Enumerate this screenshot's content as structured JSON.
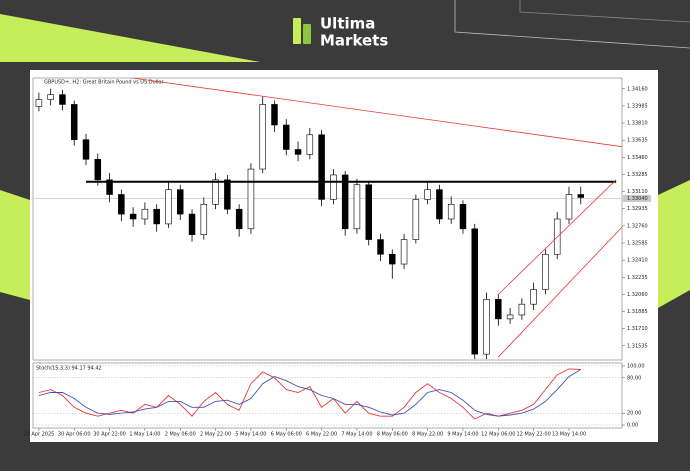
{
  "header": {
    "brand_line1": "Ultima",
    "brand_line2": "Markets"
  },
  "chart_data": {
    "type": "candlestick",
    "title": "GBPUSD+, H2: Great Britain Pound vs US Dollar",
    "categories": [
      "29 Apr 2025",
      null,
      null,
      "30 Apr 06:00",
      null,
      null,
      "30 Apr 22:00",
      null,
      null,
      "1 May 14:00",
      null,
      null,
      "2 May 06:00",
      null,
      null,
      "2 May 22:00",
      null,
      null,
      "5 May 14:00",
      null,
      null,
      "6 May 06:00",
      null,
      null,
      "6 May 22:00",
      null,
      null,
      "7 May 14:00",
      null,
      null,
      "8 May 06:00",
      null,
      null,
      "8 May 22:00",
      null,
      null,
      "9 May 14:00",
      null,
      null,
      "12 May 06:00",
      null,
      null,
      "12 May 22:00",
      null,
      null,
      "13 May 14:00",
      null
    ],
    "open": [
      1.3398,
      1.3405,
      1.341,
      1.34,
      1.3364,
      1.3344,
      1.3323,
      1.3308,
      1.3288,
      1.3283,
      1.3293,
      1.3278,
      1.3313,
      1.3288,
      1.3267,
      1.3298,
      1.3323,
      1.3293,
      1.3273,
      1.3334,
      1.34,
      1.3379,
      1.3354,
      1.3349,
      1.3369,
      1.3303,
      1.3328,
      1.3273,
      1.3318,
      1.3262,
      1.3247,
      1.3237,
      1.3262,
      1.3303,
      1.3313,
      1.3283,
      1.3298,
      1.3273,
      1.3145,
      1.3201,
      1.3181,
      1.3185,
      1.3196,
      1.3211,
      1.3247,
      1.3283,
      1.3308
    ],
    "high": [
      1.3412,
      1.3416,
      1.3415,
      1.3404,
      1.337,
      1.335,
      1.333,
      1.3313,
      1.3295,
      1.33,
      1.3298,
      1.332,
      1.3318,
      1.3293,
      1.3305,
      1.333,
      1.3328,
      1.3298,
      1.334,
      1.3408,
      1.3404,
      1.3385,
      1.3362,
      1.3376,
      1.3374,
      1.3334,
      1.3332,
      1.3324,
      1.3322,
      1.3268,
      1.3252,
      1.3268,
      1.3308,
      1.3322,
      1.3318,
      1.3306,
      1.3302,
      1.3278,
      1.3208,
      1.3206,
      1.3192,
      1.3202,
      1.3218,
      1.3252,
      1.329,
      1.3316,
      1.3316
    ],
    "low": [
      1.3393,
      1.3399,
      1.3394,
      1.3358,
      1.3338,
      1.3317,
      1.33,
      1.3281,
      1.3275,
      1.3277,
      1.327,
      1.3274,
      1.3282,
      1.326,
      1.3262,
      1.3293,
      1.3288,
      1.3265,
      1.3268,
      1.333,
      1.3372,
      1.3348,
      1.3342,
      1.3344,
      1.3296,
      1.3298,
      1.3266,
      1.3268,
      1.3256,
      1.324,
      1.3222,
      1.3232,
      1.3258,
      1.3298,
      1.3278,
      1.3278,
      1.3268,
      1.314,
      1.314,
      1.3174,
      1.3176,
      1.318,
      1.319,
      1.3206,
      1.3242,
      1.3278,
      1.3298
    ],
    "close": [
      1.3405,
      1.341,
      1.34,
      1.3364,
      1.3344,
      1.3323,
      1.3308,
      1.3288,
      1.3283,
      1.3293,
      1.3278,
      1.3313,
      1.3288,
      1.3267,
      1.3298,
      1.3323,
      1.3293,
      1.3273,
      1.3334,
      1.34,
      1.3379,
      1.3354,
      1.3349,
      1.3369,
      1.3303,
      1.3328,
      1.3273,
      1.3318,
      1.3262,
      1.3247,
      1.3237,
      1.3262,
      1.3303,
      1.3313,
      1.3283,
      1.3298,
      1.3273,
      1.3145,
      1.3201,
      1.3181,
      1.3185,
      1.3196,
      1.3211,
      1.3247,
      1.3283,
      1.3308,
      1.3305
    ],
    "up_color": "#ffffff",
    "down_color": "#000000",
    "ylim": [
      1.3139,
      1.3427
    ],
    "yticks": [
      {
        "value": 1.3416,
        "label": "1.34160"
      },
      {
        "value": 1.33985,
        "label": "1.33985"
      },
      {
        "value": 1.3381,
        "label": "1.33810"
      },
      {
        "value": 1.33635,
        "label": "1.33635"
      },
      {
        "value": 1.3346,
        "label": "1.33460"
      },
      {
        "value": 1.33285,
        "label": "1.33285"
      },
      {
        "value": 1.3311,
        "label": "1.33110"
      },
      {
        "value": 1.32935,
        "label": "1.32935"
      },
      {
        "value": 1.3276,
        "label": "1.32760"
      },
      {
        "value": 1.32585,
        "label": "1.32585"
      },
      {
        "value": 1.3241,
        "label": "1.32410"
      },
      {
        "value": 1.32235,
        "label": "1.32235"
      },
      {
        "value": 1.3206,
        "label": "1.32060"
      },
      {
        "value": 1.31885,
        "label": "1.31885"
      },
      {
        "value": 1.3171,
        "label": "1.31710"
      },
      {
        "value": 1.31535,
        "label": "1.31535"
      }
    ],
    "current_price": {
      "value": 1.3304,
      "label": "1.33040"
    },
    "lines": [
      {
        "color": "#000000",
        "start": [
          4,
          1.3321
        ],
        "end": [
          49,
          1.3321
        ]
      },
      {
        "color": "#e53935",
        "start": [
          5,
          1.3432
        ],
        "end": [
          50,
          1.3356
        ]
      },
      {
        "color": "#e53935",
        "start": [
          39,
          1.3206
        ],
        "end": [
          49,
          1.3323
        ]
      },
      {
        "color": "#e53935",
        "start": [
          39,
          1.3142
        ],
        "end": [
          50,
          1.3281
        ]
      }
    ],
    "indicator": {
      "type": "line",
      "title": "Stoch(15,3,3) 94.17 94.42",
      "ylim": [
        -5,
        105
      ],
      "yticks": [
        {
          "value": 100,
          "label": "100.00"
        },
        {
          "value": 80,
          "label": "80.00"
        },
        {
          "value": 20,
          "label": "20.00"
        },
        {
          "value": 0,
          "label": "0.00"
        }
      ],
      "series": [
        {
          "name": "Main",
          "color": "#e53935",
          "values": [
            55,
            60,
            50,
            30,
            20,
            15,
            20,
            25,
            20,
            35,
            30,
            50,
            35,
            15,
            40,
            55,
            35,
            25,
            70,
            90,
            80,
            60,
            55,
            65,
            30,
            45,
            20,
            40,
            20,
            15,
            15,
            30,
            55,
            70,
            55,
            45,
            30,
            10,
            20,
            15,
            20,
            25,
            35,
            60,
            85,
            95,
            94
          ]
        },
        {
          "name": "Signal",
          "color": "#3f51b5",
          "values": [
            50,
            55,
            55,
            45,
            30,
            20,
            18,
            20,
            22,
            27,
            30,
            40,
            40,
            30,
            30,
            40,
            42,
            35,
            45,
            70,
            82,
            75,
            65,
            60,
            50,
            45,
            35,
            35,
            30,
            22,
            17,
            20,
            35,
            55,
            60,
            55,
            42,
            25,
            18,
            15,
            17,
            20,
            27,
            40,
            60,
            82,
            94
          ]
        }
      ]
    }
  }
}
